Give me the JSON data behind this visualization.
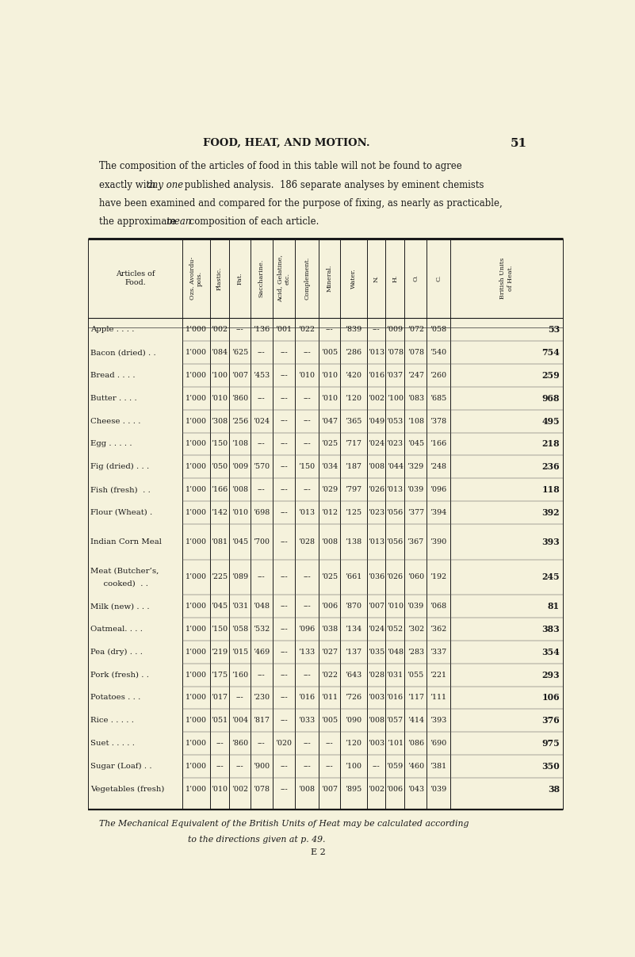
{
  "title": "FOOD, HEAT, AND MOTION.",
  "page_num": "51",
  "bg_color": "#f5f2dc",
  "rows": [
    [
      "Apple . . . .",
      "1’000",
      "’002",
      "---",
      "’136",
      "’001",
      "’022",
      "---",
      "’839",
      "---",
      "’009",
      "’072",
      "’058",
      "53"
    ],
    [
      "Bacon (dried) . .",
      "1’000",
      "’084",
      "’625",
      "---",
      "---",
      "---",
      "’005",
      "’286",
      "’013",
      "’078",
      "’078",
      "’540",
      "754"
    ],
    [
      "Bread . . . .",
      "1’000",
      "’100",
      "’007",
      "’453",
      "---",
      "’010",
      "’010",
      "’420",
      "’016",
      "’037",
      "’247",
      "’260",
      "259"
    ],
    [
      "Butter . . . .",
      "1’000",
      "’010",
      "’860",
      "---",
      "---",
      "---",
      "’010",
      "’120",
      "’002",
      "’100",
      "’083",
      "’685",
      "968"
    ],
    [
      "Cheese . . . .",
      "1’000",
      "’308",
      "’256",
      "’024",
      "---",
      "---",
      "’047",
      "’365",
      "’049",
      "’053",
      "’108",
      "’378",
      "495"
    ],
    [
      "Egg . . . . .",
      "1’000",
      "’150",
      "’108",
      "---",
      "---",
      "---",
      "’025",
      "’717",
      "’024",
      "’023",
      "’045",
      "’166",
      "218"
    ],
    [
      "Fig (dried) . . .",
      "1’000",
      "’050",
      "’009",
      "’570",
      "---",
      "’150",
      "’034",
      "’187",
      "’008",
      "’044",
      "’329",
      "’248",
      "236"
    ],
    [
      "Fish (fresh)  . .",
      "1’000",
      "’166",
      "’008",
      "---",
      "---",
      "---",
      "’029",
      "’797",
      "’026",
      "’013",
      "’039",
      "’096",
      "118"
    ],
    [
      "Flour (Wheat) .",
      "1’000",
      "’142",
      "’010",
      "’698",
      "---",
      "’013",
      "’012",
      "’125",
      "’023",
      "’056",
      "’377",
      "’394",
      "392"
    ],
    [
      "Indian Corn Meal",
      "1’000",
      "’081",
      "’045",
      "’700",
      "---",
      "’028",
      "’008",
      "’138",
      "’013",
      "’056",
      "’367",
      "’390",
      "393"
    ],
    [
      "Meat (Butcher’s,\n  cooked)  . .",
      "1’000",
      "’225",
      "’089",
      "---",
      "---",
      "---",
      "’025",
      "’661",
      "’036",
      "’026",
      "’060",
      "’192",
      "245"
    ],
    [
      "Milk (new) . . .",
      "1’000",
      "’045",
      "’031",
      "’048",
      "---",
      "---",
      "’006",
      "’870",
      "’007",
      "’010",
      "’039",
      "’068",
      "81"
    ],
    [
      "Oatmeal. . . .",
      "1’000",
      "’150",
      "’058",
      "’532",
      "---",
      "’096",
      "’038",
      "’134",
      "’024",
      "’052",
      "’302",
      "’362",
      "383"
    ],
    [
      "Pea (dry) . . .",
      "1’000",
      "’219",
      "’015",
      "’469",
      "---",
      "’133",
      "’027",
      "’137",
      "’035",
      "’048",
      "’283",
      "’337",
      "354"
    ],
    [
      "Pork (fresh) . .",
      "1’000",
      "’175",
      "’160",
      "---",
      "---",
      "---",
      "’022",
      "’643",
      "’028",
      "’031",
      "’055",
      "’221",
      "293"
    ],
    [
      "Potatoes . . .",
      "1’000",
      "’017",
      "---",
      "’230",
      "---",
      "’016",
      "’011",
      "’726",
      "’003",
      "’016",
      "’117",
      "’111",
      "106"
    ],
    [
      "Rice . . . . .",
      "1’000",
      "’051",
      "’004",
      "’817",
      "---",
      "’033",
      "’005",
      "’090",
      "’008",
      "’057",
      "’414",
      "’393",
      "376"
    ],
    [
      "Suet . . . . .",
      "1’000",
      "---",
      "’860",
      "---",
      "’020",
      "---",
      "---",
      "’120",
      "’003",
      "’101",
      "’086",
      "’690",
      "975"
    ],
    [
      "Sugar (Loaf) . .",
      "1’000",
      "---",
      "---",
      "’900",
      "---",
      "---",
      "---",
      "’100",
      "---",
      "’059",
      "’460",
      "’381",
      "350"
    ],
    [
      "Vegetables (fresh)",
      "1’000",
      "’010",
      "’002",
      "’078",
      "---",
      "’008",
      "’007",
      "’895",
      "’002",
      "’006",
      "’043",
      "’039",
      "38"
    ]
  ],
  "col_header_texts": [
    "Ozs. Avoirdu-\npois.",
    "Plastic.",
    "Fat.",
    "Saccharine.",
    "Acid, Gelatine,\netc.",
    "Complement.",
    "Mineral.",
    "Water.",
    "N.",
    "H.",
    "O.",
    "C.",
    "British Units\nof Heat."
  ],
  "footer1": "The Mechanical Equivalent of the British Units of Heat may be calculated according",
  "footer2": "to the directions given at p. 49.",
  "footer3": "E 2"
}
